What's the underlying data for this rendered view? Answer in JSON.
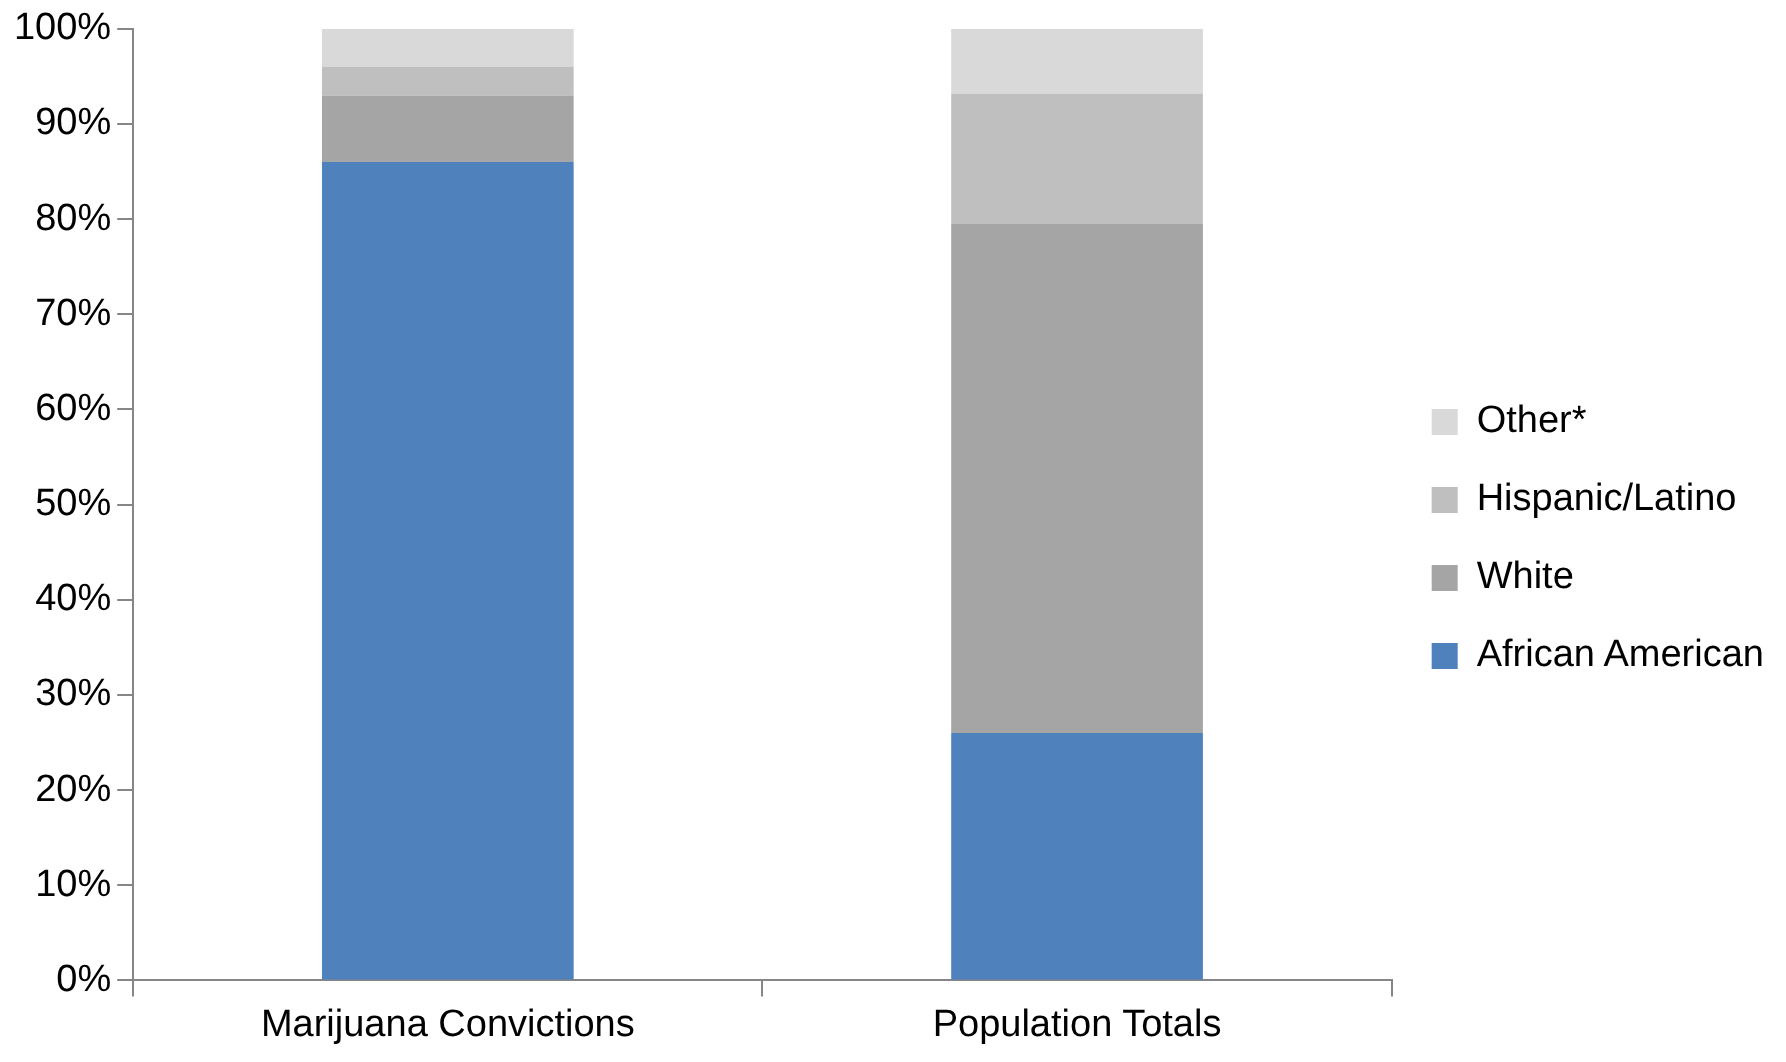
{
  "chart_data": {
    "type": "bar",
    "stacked": true,
    "categories": [
      "Marijuana Convictions",
      "Population Totals"
    ],
    "series": [
      {
        "name": "African American",
        "color": "#4f81bd",
        "values": [
          86,
          26
        ]
      },
      {
        "name": "White",
        "color": "#a5a5a5",
        "values": [
          7,
          53.5
        ]
      },
      {
        "name": "Hispanic/Latino",
        "color": "#bfbfbf",
        "values": [
          3,
          13.7
        ]
      },
      {
        "name": "Other*",
        "color": "#d9d9d9",
        "values": [
          4,
          6.8
        ]
      }
    ],
    "ylim": [
      0,
      100
    ],
    "yticks": [
      {
        "value": 0,
        "label": "0%"
      },
      {
        "value": 10,
        "label": "10%"
      },
      {
        "value": 20,
        "label": "20%"
      },
      {
        "value": 30,
        "label": "30%"
      },
      {
        "value": 40,
        "label": "40%"
      },
      {
        "value": 50,
        "label": "50%"
      },
      {
        "value": 60,
        "label": "60%"
      },
      {
        "value": 70,
        "label": "70%"
      },
      {
        "value": 80,
        "label": "80%"
      },
      {
        "value": 90,
        "label": "90%"
      },
      {
        "value": 100,
        "label": "100%"
      }
    ],
    "grid": false,
    "legend": "right"
  }
}
